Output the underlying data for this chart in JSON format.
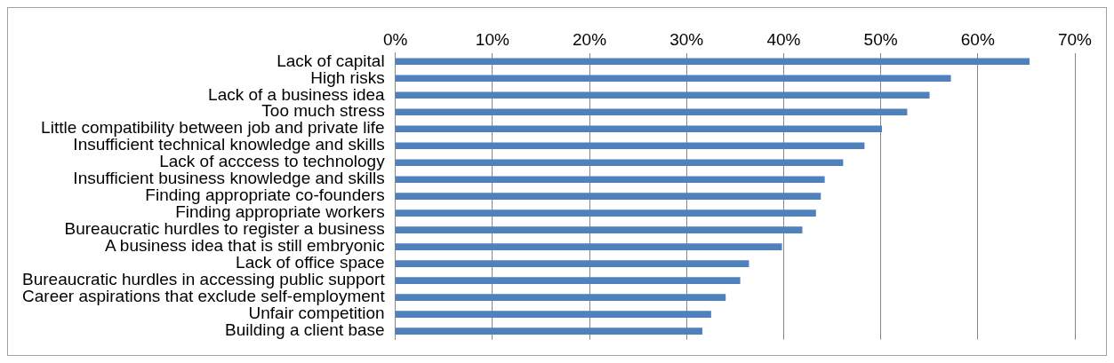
{
  "chart_data": {
    "type": "bar",
    "orientation": "horizontal",
    "color": "#4f81bd",
    "grid": "x",
    "legend": false,
    "categories": [
      "Lack of capital",
      "High risks",
      "Lack of a business idea",
      "Too much stress",
      "Little compatibility between job and private life",
      "Insufficient technical knowledge and skills",
      "Lack of acccess to technology",
      "Insufficient business knowledge and skills",
      "Finding appropriate co-founders",
      "Finding appropriate workers",
      "Bureaucratic hurdles to register a business",
      "A business idea that is still embryonic",
      "Lack of office space",
      "Bureaucratic hurdles in accessing public support",
      "Career aspirations that exclude self-employment",
      "Unfair competition",
      "Building a client base"
    ],
    "values": [
      65.3,
      57.2,
      55.0,
      52.7,
      50.1,
      48.3,
      46.1,
      44.2,
      43.8,
      43.3,
      41.9,
      39.8,
      36.4,
      35.5,
      34.0,
      32.5,
      31.6
    ],
    "xlim": [
      0,
      70
    ],
    "xticks": [
      {
        "value": 0,
        "label": "0%"
      },
      {
        "value": 10,
        "label": "10%"
      },
      {
        "value": 20,
        "label": "20%"
      },
      {
        "value": 30,
        "label": "30%"
      },
      {
        "value": 40,
        "label": "40%"
      },
      {
        "value": 50,
        "label": "50%"
      },
      {
        "value": 60,
        "label": "60%"
      },
      {
        "value": 70,
        "label": "70%"
      }
    ]
  }
}
